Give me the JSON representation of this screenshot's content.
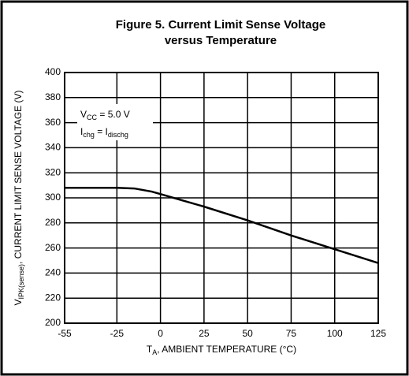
{
  "chart_data": {
    "type": "line",
    "title": [
      "Figure 5. Current Limit Sense Voltage",
      "versus Temperature"
    ],
    "xlabel": [
      "T",
      "A",
      ", AMBIENT TEMPERATURE (°C)"
    ],
    "ylabel": [
      "V",
      "IPK(sense)",
      ", CURRENT LIMIT SENSE VOLTAGE (V)"
    ],
    "annotations": [
      [
        "V",
        "CC",
        " = 5.0 V"
      ],
      [
        "I",
        "chg",
        " = I",
        "dischg"
      ]
    ],
    "x": [
      -55,
      -40,
      -25,
      -15,
      -5,
      0,
      25,
      50,
      75,
      100,
      125
    ],
    "series": [
      {
        "color": "#000000",
        "values": [
          308,
          308,
          308,
          307.5,
          305,
          303,
          293,
          282,
          270,
          259,
          248
        ]
      }
    ],
    "xlim": [
      -55,
      125
    ],
    "xticks": [
      -55,
      -25,
      0,
      25,
      50,
      75,
      100,
      125
    ],
    "ylim": [
      200,
      400
    ],
    "yticks": [
      200,
      220,
      240,
      260,
      280,
      300,
      320,
      340,
      360,
      380,
      400
    ],
    "grid": true
  }
}
